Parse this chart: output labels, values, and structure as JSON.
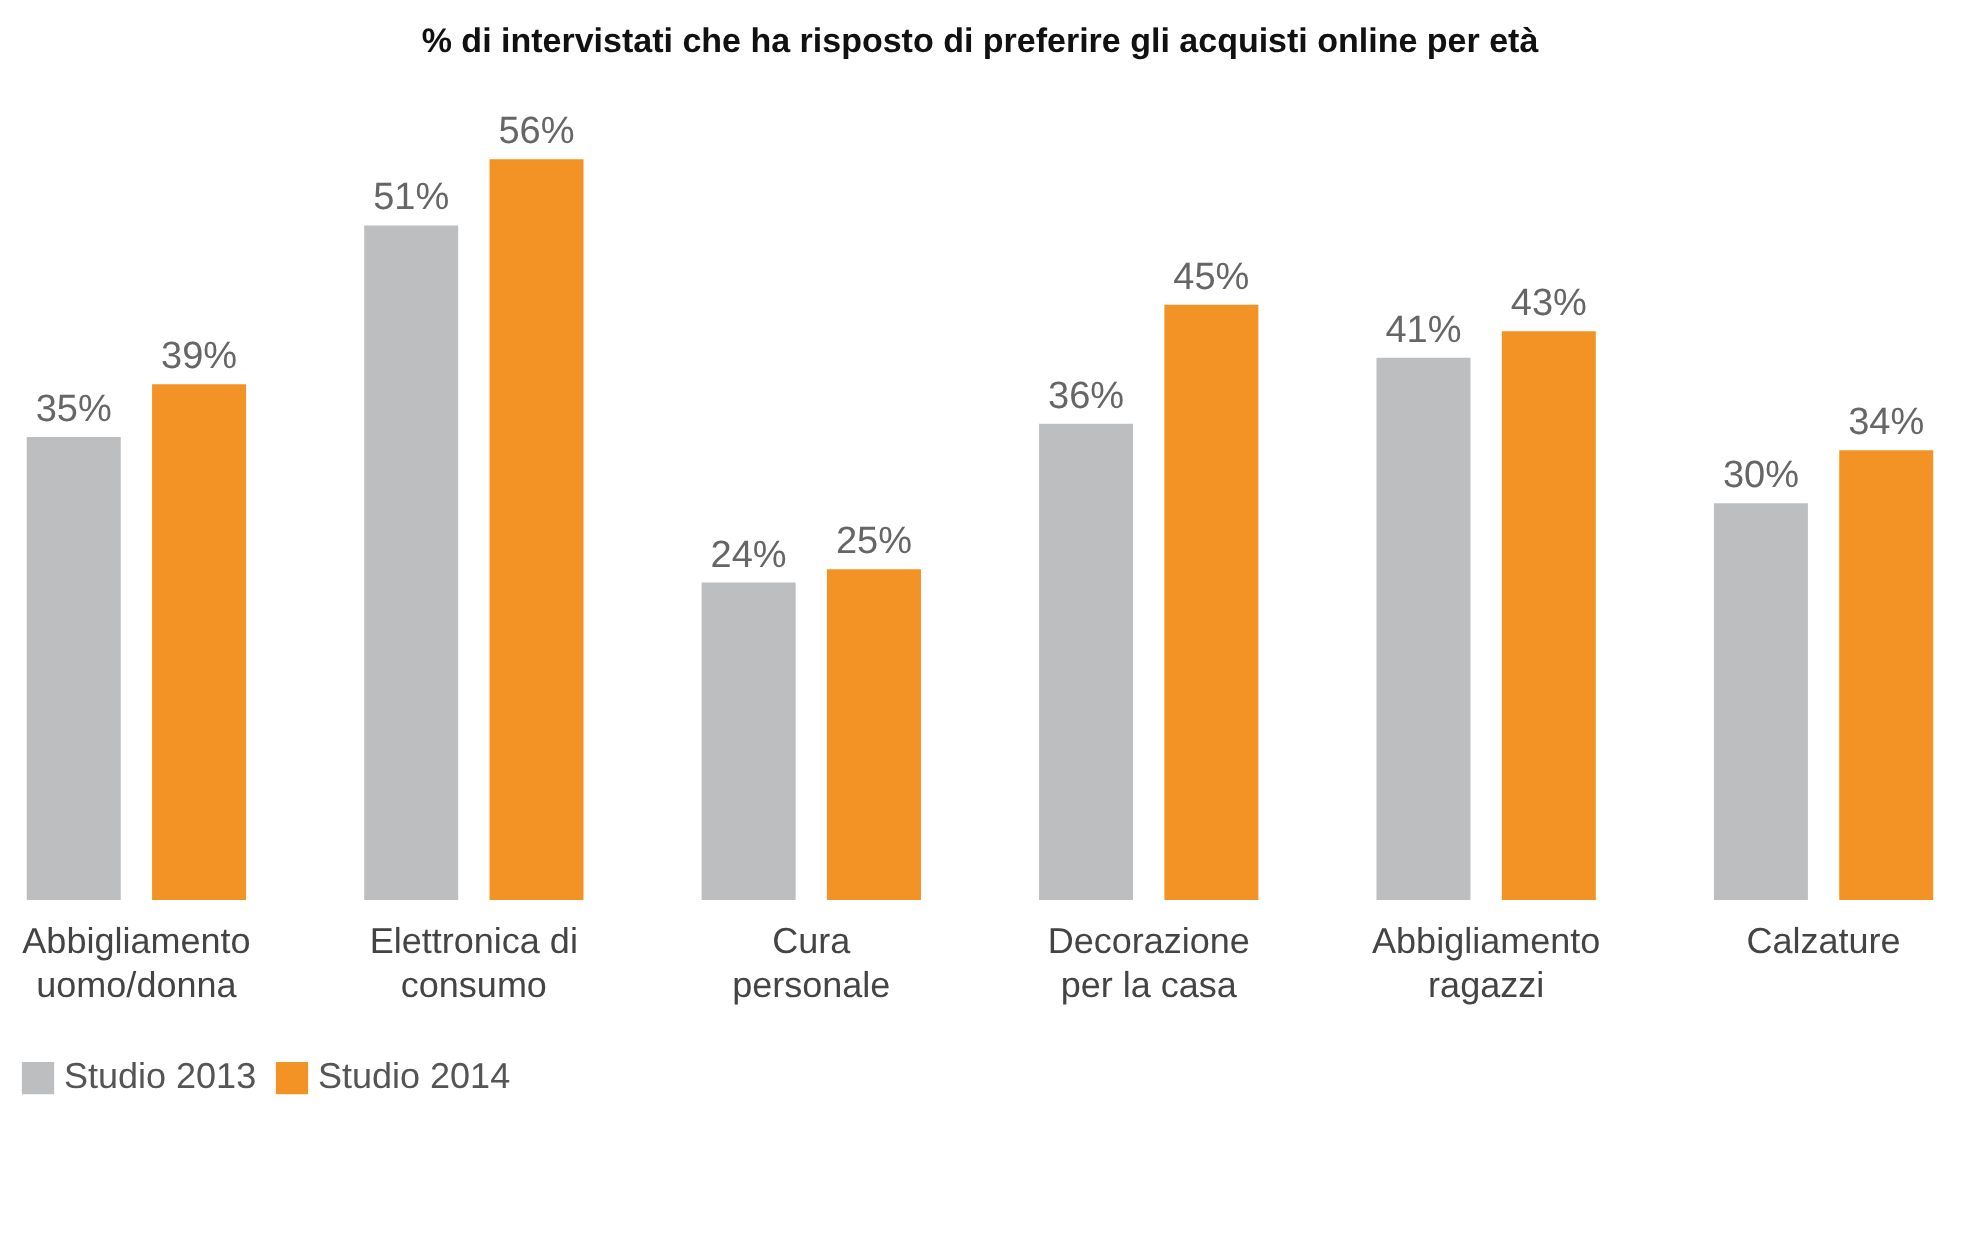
{
  "chart_data": {
    "type": "bar",
    "title": "% di intervistati che ha risposto di preferire gli acquisti online per età",
    "categories": [
      "Abbigliamento\nuomo/donna",
      "Elettronica di\nconsumo",
      "Cura\npersonale",
      "Decorazione\nper la casa",
      "Abbigliamento\nragazzi",
      "Calzature"
    ],
    "series": [
      {
        "name": "Studio 2013",
        "color": "#bdbec0",
        "values": [
          35,
          51,
          24,
          36,
          41,
          30
        ],
        "value_labels": [
          "35%",
          "51%",
          "24%",
          "36%",
          "41%",
          "30%"
        ]
      },
      {
        "name": "Studio 2014",
        "color": "#f39325",
        "values": [
          39,
          56,
          25,
          45,
          43,
          34
        ],
        "value_labels": [
          "39%",
          "56%",
          "25%",
          "45%",
          "43%",
          "34%"
        ]
      }
    ],
    "legend": "bottom left",
    "grid": false
  }
}
